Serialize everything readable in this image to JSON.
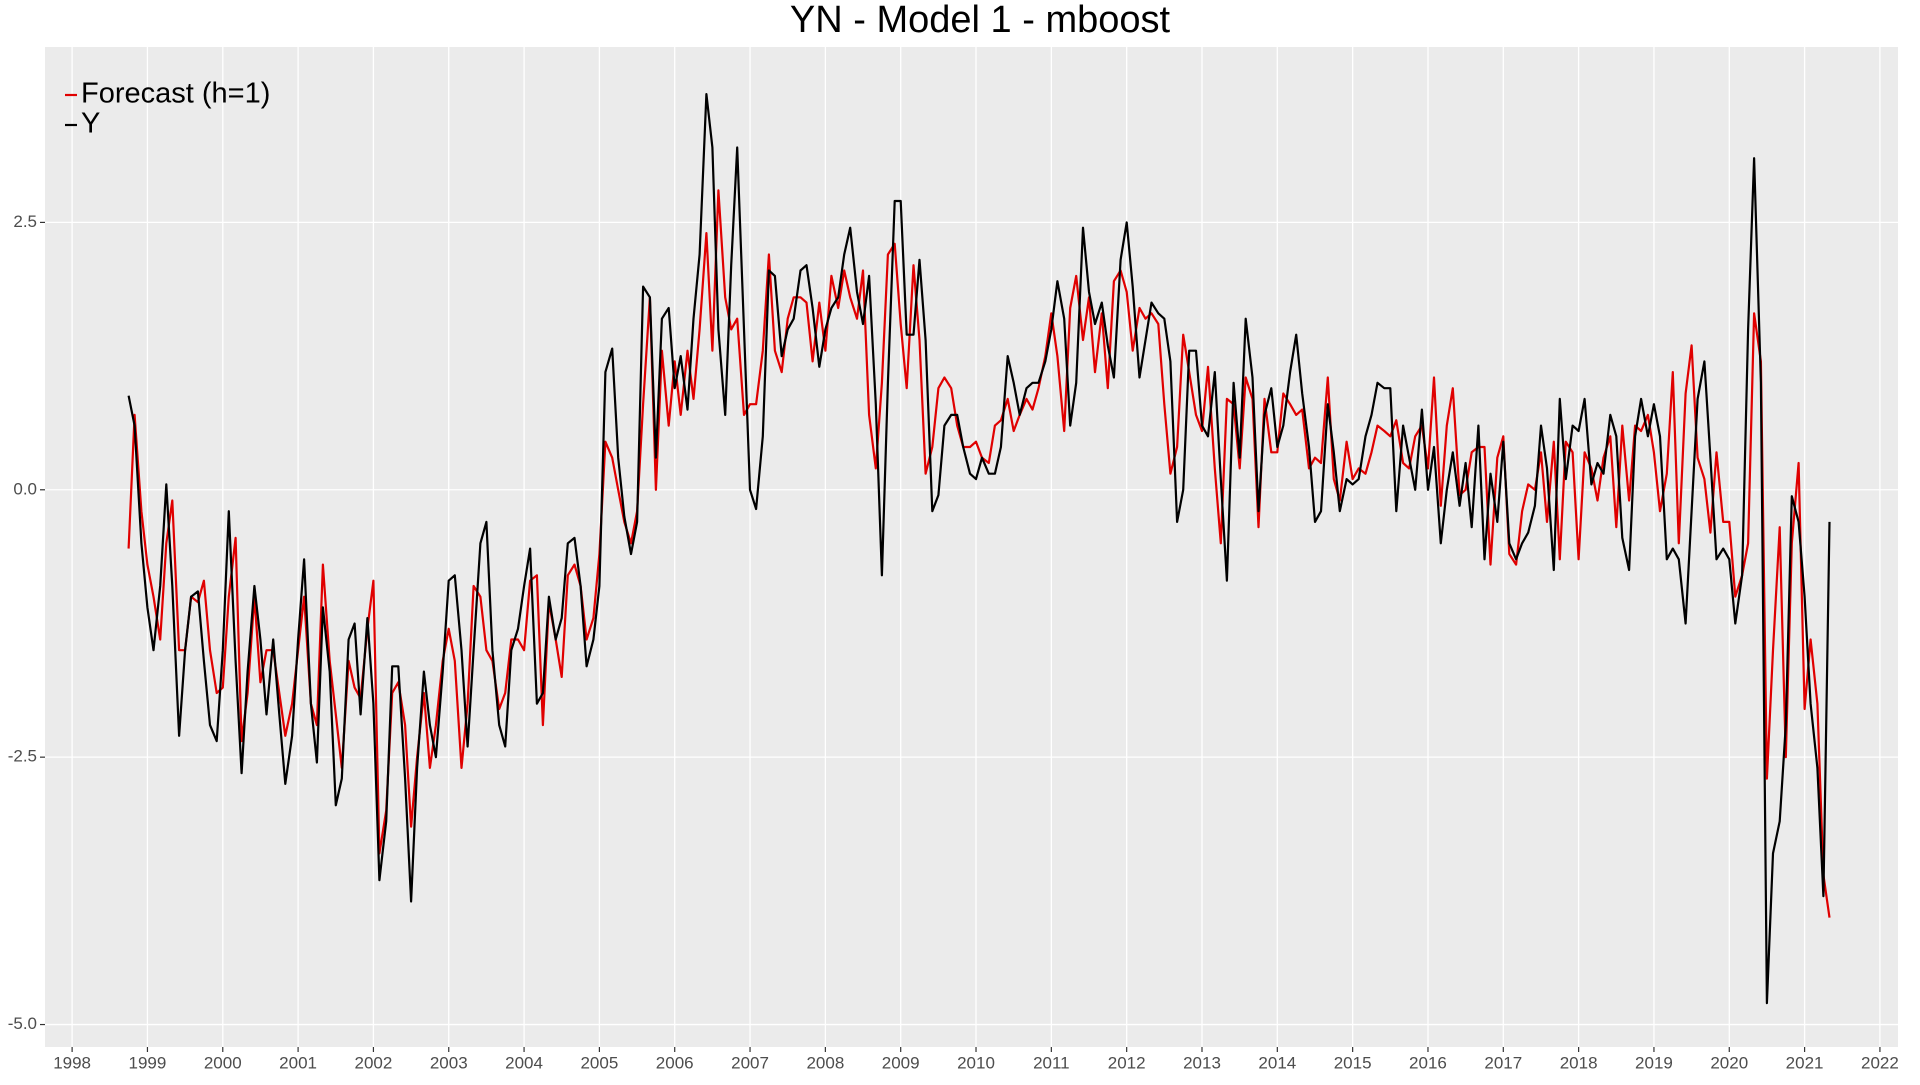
{
  "chart_data": {
    "type": "line",
    "title": "YN - Model 1 - mboost",
    "x": [
      1998.75,
      1998.83,
      1998.92,
      1999.0,
      1999.08,
      1999.17,
      1999.25,
      1999.33,
      1999.42,
      1999.5,
      1999.58,
      1999.67,
      1999.75,
      1999.83,
      1999.92,
      2000.0,
      2000.08,
      2000.17,
      2000.25,
      2000.33,
      2000.42,
      2000.5,
      2000.58,
      2000.67,
      2000.75,
      2000.83,
      2000.92,
      2001.0,
      2001.08,
      2001.17,
      2001.25,
      2001.33,
      2001.42,
      2001.5,
      2001.58,
      2001.67,
      2001.75,
      2001.83,
      2001.92,
      2002.0,
      2002.08,
      2002.17,
      2002.25,
      2002.33,
      2002.42,
      2002.5,
      2002.58,
      2002.67,
      2002.75,
      2002.83,
      2002.92,
      2003.0,
      2003.08,
      2003.17,
      2003.25,
      2003.33,
      2003.42,
      2003.5,
      2003.58,
      2003.67,
      2003.75,
      2003.83,
      2003.92,
      2004.0,
      2004.08,
      2004.17,
      2004.25,
      2004.33,
      2004.42,
      2004.5,
      2004.58,
      2004.67,
      2004.75,
      2004.83,
      2004.92,
      2005.0,
      2005.08,
      2005.17,
      2005.25,
      2005.33,
      2005.42,
      2005.5,
      2005.58,
      2005.67,
      2005.75,
      2005.83,
      2005.92,
      2006.0,
      2006.08,
      2006.17,
      2006.25,
      2006.33,
      2006.42,
      2006.5,
      2006.58,
      2006.67,
      2006.75,
      2006.83,
      2006.92,
      2007.0,
      2007.08,
      2007.17,
      2007.25,
      2007.33,
      2007.42,
      2007.5,
      2007.58,
      2007.67,
      2007.75,
      2007.83,
      2007.92,
      2008.0,
      2008.08,
      2008.17,
      2008.25,
      2008.33,
      2008.42,
      2008.5,
      2008.58,
      2008.67,
      2008.75,
      2008.83,
      2008.92,
      2009.0,
      2009.08,
      2009.17,
      2009.25,
      2009.33,
      2009.42,
      2009.5,
      2009.58,
      2009.67,
      2009.75,
      2009.83,
      2009.92,
      2010.0,
      2010.08,
      2010.17,
      2010.25,
      2010.33,
      2010.42,
      2010.5,
      2010.58,
      2010.67,
      2010.75,
      2010.83,
      2010.92,
      2011.0,
      2011.08,
      2011.17,
      2011.25,
      2011.33,
      2011.42,
      2011.5,
      2011.58,
      2011.67,
      2011.75,
      2011.83,
      2011.92,
      2012.0,
      2012.08,
      2012.17,
      2012.25,
      2012.33,
      2012.42,
      2012.5,
      2012.58,
      2012.67,
      2012.75,
      2012.83,
      2012.92,
      2013.0,
      2013.08,
      2013.17,
      2013.25,
      2013.33,
      2013.42,
      2013.5,
      2013.58,
      2013.67,
      2013.75,
      2013.83,
      2013.92,
      2014.0,
      2014.08,
      2014.17,
      2014.25,
      2014.33,
      2014.42,
      2014.5,
      2014.58,
      2014.67,
      2014.75,
      2014.83,
      2014.92,
      2015.0,
      2015.08,
      2015.17,
      2015.25,
      2015.33,
      2015.42,
      2015.5,
      2015.58,
      2015.67,
      2015.75,
      2015.83,
      2015.92,
      2016.0,
      2016.08,
      2016.17,
      2016.25,
      2016.33,
      2016.42,
      2016.5,
      2016.58,
      2016.67,
      2016.75,
      2016.83,
      2016.92,
      2017.0,
      2017.08,
      2017.17,
      2017.25,
      2017.33,
      2017.42,
      2017.5,
      2017.58,
      2017.67,
      2017.75,
      2017.83,
      2017.92,
      2018.0,
      2018.08,
      2018.17,
      2018.25,
      2018.33,
      2018.42,
      2018.5,
      2018.58,
      2018.67,
      2018.75,
      2018.83,
      2018.92,
      2019.0,
      2019.08,
      2019.17,
      2019.25,
      2019.33,
      2019.42,
      2019.5,
      2019.58,
      2019.67,
      2019.75,
      2019.83,
      2019.92,
      2020.0,
      2020.08,
      2020.17,
      2020.25,
      2020.33,
      2020.42,
      2020.5,
      2020.58,
      2020.67,
      2020.75,
      2020.83,
      2020.92,
      2021.0,
      2021.08,
      2021.17,
      2021.25,
      2021.33
    ],
    "series": [
      {
        "name": "Forecast (h=1)",
        "color": "#e00000",
        "values": [
          -0.55,
          0.7,
          -0.2,
          -0.7,
          -1.0,
          -1.4,
          -0.5,
          -0.1,
          -1.5,
          -1.5,
          -1.0,
          -1.05,
          -0.85,
          -1.5,
          -1.9,
          -1.85,
          -1.0,
          -0.45,
          -2.35,
          -1.9,
          -1.0,
          -1.8,
          -1.5,
          -1.5,
          -1.9,
          -2.3,
          -2.0,
          -1.5,
          -1.0,
          -2.0,
          -2.2,
          -0.7,
          -1.6,
          -2.1,
          -2.6,
          -1.6,
          -1.85,
          -1.95,
          -1.3,
          -0.85,
          -3.4,
          -3.0,
          -1.9,
          -1.8,
          -2.2,
          -3.15,
          -2.5,
          -1.9,
          -2.6,
          -2.2,
          -1.6,
          -1.3,
          -1.6,
          -2.6,
          -2.0,
          -0.9,
          -1.0,
          -1.5,
          -1.6,
          -2.05,
          -1.9,
          -1.4,
          -1.4,
          -1.5,
          -0.85,
          -0.8,
          -2.2,
          -1.05,
          -1.4,
          -1.75,
          -0.8,
          -0.7,
          -0.9,
          -1.4,
          -1.2,
          -0.6,
          0.45,
          0.3,
          0.0,
          -0.3,
          -0.5,
          -0.2,
          0.8,
          1.8,
          0.0,
          1.3,
          0.6,
          1.2,
          0.7,
          1.3,
          0.85,
          1.5,
          2.4,
          1.3,
          2.8,
          1.8,
          1.5,
          1.6,
          0.7,
          0.8,
          0.8,
          1.3,
          2.2,
          1.3,
          1.1,
          1.6,
          1.8,
          1.8,
          1.75,
          1.2,
          1.75,
          1.3,
          2.0,
          1.7,
          2.05,
          1.8,
          1.6,
          2.05,
          0.7,
          0.2,
          1.0,
          2.2,
          2.3,
          1.55,
          0.95,
          2.1,
          1.4,
          0.15,
          0.4,
          0.95,
          1.05,
          0.95,
          0.6,
          0.4,
          0.4,
          0.45,
          0.3,
          0.25,
          0.6,
          0.65,
          0.85,
          0.55,
          0.7,
          0.85,
          0.75,
          0.95,
          1.25,
          1.65,
          1.25,
          0.55,
          1.7,
          2.0,
          1.4,
          1.8,
          1.1,
          1.65,
          0.95,
          1.95,
          2.05,
          1.85,
          1.3,
          1.7,
          1.6,
          1.65,
          1.55,
          0.8,
          0.15,
          0.4,
          1.45,
          1.1,
          0.7,
          0.55,
          1.15,
          0.2,
          -0.5,
          0.85,
          0.8,
          0.2,
          1.05,
          0.85,
          -0.35,
          0.85,
          0.35,
          0.35,
          0.9,
          0.8,
          0.7,
          0.75,
          0.2,
          0.3,
          0.25,
          1.05,
          0.1,
          -0.1,
          0.45,
          0.1,
          0.2,
          0.15,
          0.35,
          0.6,
          0.55,
          0.5,
          0.65,
          0.25,
          0.2,
          0.5,
          0.6,
          0.2,
          1.05,
          -0.15,
          0.6,
          0.95,
          -0.05,
          0.0,
          0.35,
          0.4,
          0.4,
          -0.7,
          0.3,
          0.5,
          -0.6,
          -0.7,
          -0.2,
          0.05,
          0.0,
          0.35,
          -0.3,
          0.45,
          -0.65,
          0.45,
          0.35,
          -0.65,
          0.35,
          0.2,
          -0.1,
          0.3,
          0.5,
          -0.35,
          0.6,
          -0.1,
          0.6,
          0.55,
          0.7,
          0.35,
          -0.2,
          0.15,
          1.1,
          -0.5,
          0.9,
          1.35,
          0.3,
          0.1,
          -0.4,
          0.35,
          -0.3,
          -0.3,
          -1.0,
          -0.8,
          -0.5,
          1.65,
          1.2,
          -2.7,
          -1.5,
          -0.35,
          -2.5,
          -0.5,
          0.25,
          -2.05,
          -1.4,
          -2.0,
          -3.6,
          -4.0
        ]
      },
      {
        "name": "Y",
        "color": "#000000",
        "values": [
          0.88,
          0.6,
          -0.5,
          -1.1,
          -1.5,
          -0.9,
          0.05,
          -0.9,
          -2.3,
          -1.5,
          -1.0,
          -0.95,
          -1.6,
          -2.2,
          -2.35,
          -1.5,
          -0.2,
          -1.6,
          -2.65,
          -1.7,
          -0.9,
          -1.4,
          -2.1,
          -1.4,
          -2.1,
          -2.75,
          -2.3,
          -1.4,
          -0.65,
          -2.0,
          -2.55,
          -1.1,
          -1.7,
          -2.95,
          -2.7,
          -1.4,
          -1.25,
          -2.1,
          -1.2,
          -2.0,
          -3.65,
          -3.1,
          -1.65,
          -1.65,
          -2.7,
          -3.85,
          -2.6,
          -1.7,
          -2.2,
          -2.5,
          -1.7,
          -0.85,
          -0.8,
          -1.5,
          -2.4,
          -1.5,
          -0.5,
          -0.3,
          -1.5,
          -2.2,
          -2.4,
          -1.5,
          -1.3,
          -0.9,
          -0.55,
          -2.0,
          -1.9,
          -1.0,
          -1.4,
          -1.2,
          -0.5,
          -0.45,
          -0.9,
          -1.65,
          -1.4,
          -0.9,
          1.1,
          1.32,
          0.3,
          -0.25,
          -0.6,
          -0.3,
          1.9,
          1.8,
          0.3,
          1.6,
          1.7,
          0.95,
          1.25,
          0.75,
          1.6,
          2.2,
          3.7,
          3.2,
          1.5,
          0.7,
          2.1,
          3.2,
          1.5,
          0.0,
          -0.18,
          0.5,
          2.05,
          2.0,
          1.25,
          1.5,
          1.6,
          2.05,
          2.1,
          1.7,
          1.15,
          1.5,
          1.7,
          1.8,
          2.2,
          2.45,
          1.85,
          1.55,
          2.0,
          0.8,
          -0.8,
          1.0,
          2.7,
          2.7,
          1.45,
          1.45,
          2.15,
          1.4,
          -0.2,
          -0.05,
          0.6,
          0.7,
          0.7,
          0.4,
          0.15,
          0.1,
          0.3,
          0.15,
          0.15,
          0.4,
          1.25,
          1.0,
          0.7,
          0.95,
          1.0,
          1.0,
          1.2,
          1.5,
          1.95,
          1.6,
          0.6,
          1.0,
          2.45,
          1.85,
          1.55,
          1.75,
          1.35,
          1.05,
          2.15,
          2.5,
          1.9,
          1.05,
          1.4,
          1.75,
          1.65,
          1.6,
          1.2,
          -0.3,
          0.0,
          1.3,
          1.3,
          0.6,
          0.5,
          1.1,
          0.1,
          -0.85,
          1.0,
          0.3,
          1.6,
          1.05,
          -0.2,
          0.7,
          0.95,
          0.4,
          0.6,
          1.1,
          1.45,
          0.9,
          0.4,
          -0.3,
          -0.2,
          0.8,
          0.35,
          -0.2,
          0.1,
          0.05,
          0.1,
          0.5,
          0.7,
          1.0,
          0.95,
          0.95,
          -0.2,
          0.6,
          0.3,
          0.0,
          0.75,
          0.0,
          0.4,
          -0.5,
          0.0,
          0.35,
          -0.15,
          0.25,
          -0.35,
          0.6,
          -0.65,
          0.15,
          -0.3,
          0.45,
          -0.5,
          -0.65,
          -0.5,
          -0.4,
          -0.15,
          0.6,
          0.2,
          -0.75,
          0.85,
          0.1,
          0.6,
          0.55,
          0.85,
          0.05,
          0.25,
          0.15,
          0.7,
          0.5,
          -0.45,
          -0.75,
          0.5,
          0.85,
          0.5,
          0.8,
          0.5,
          -0.65,
          -0.55,
          -0.65,
          -1.25,
          -0.2,
          0.85,
          1.2,
          0.3,
          -0.65,
          -0.55,
          -0.65,
          -1.25,
          -0.8,
          1.5,
          3.1,
          1.0,
          -4.8,
          -3.4,
          -3.1,
          -2.2,
          -0.06,
          -0.3,
          -1.0,
          -2.0,
          -2.6,
          -3.8,
          -0.3
        ]
      }
    ],
    "xlim": [
      1997.64,
      2022.24
    ],
    "xticks": [
      1998,
      1999,
      2000,
      2001,
      2002,
      2003,
      2004,
      2005,
      2006,
      2007,
      2008,
      2009,
      2010,
      2011,
      2012,
      2013,
      2014,
      2015,
      2016,
      2017,
      2018,
      2019,
      2020,
      2021,
      2022
    ],
    "ylim": [
      -5.21,
      4.14
    ],
    "yticks": [
      {
        "value": -5,
        "label": "-5.0"
      },
      -2.5,
      {
        "value": 0,
        "label": "0.0"
      },
      2.5
    ],
    "grid": true,
    "legend": "top-left"
  }
}
